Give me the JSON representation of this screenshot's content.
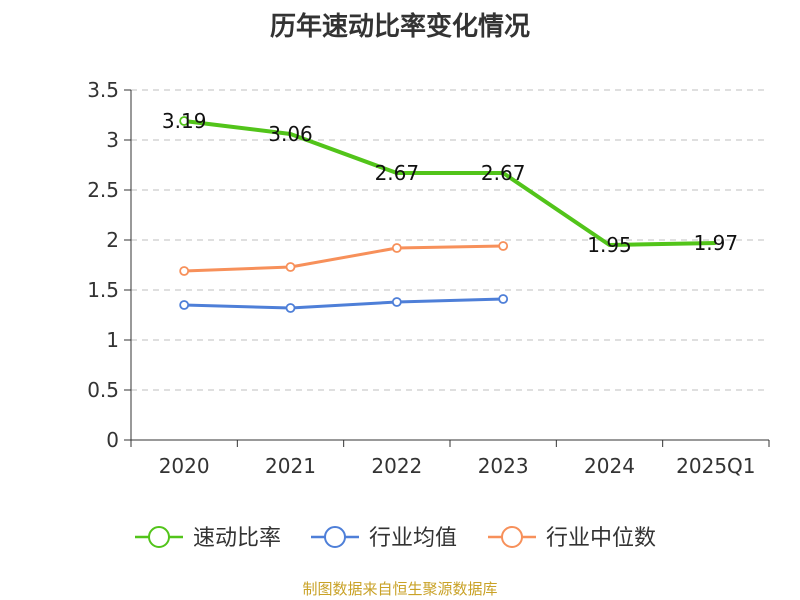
{
  "chart_data": {
    "type": "line",
    "title": "历年速动比率变化情况",
    "categories": [
      "2020",
      "2021",
      "2022",
      "2023",
      "2024",
      "2025Q1"
    ],
    "ylim": [
      0,
      3.5
    ],
    "yticks": [
      "0",
      "0.5",
      "1",
      "1.5",
      "2",
      "2.5",
      "3",
      "3.5"
    ],
    "grid": true,
    "legend_position": "bottom",
    "series": [
      {
        "name": "速动比率",
        "color": "#52c41a",
        "values": [
          3.19,
          3.06,
          2.67,
          2.67,
          1.95,
          1.97
        ],
        "labels": [
          "3.19",
          "3.06",
          "2.67",
          "2.67",
          "1.95",
          "1.97"
        ],
        "markers": false
      },
      {
        "name": "行业均值",
        "color": "#4e7fd8",
        "values": [
          1.35,
          1.32,
          1.38,
          1.41,
          null,
          null
        ],
        "markers": true
      },
      {
        "name": "行业中位数",
        "color": "#f7905a",
        "values": [
          1.69,
          1.73,
          1.92,
          1.94,
          null,
          null
        ],
        "markers": true
      }
    ]
  },
  "source": "制图数据来自恒生聚源数据库"
}
